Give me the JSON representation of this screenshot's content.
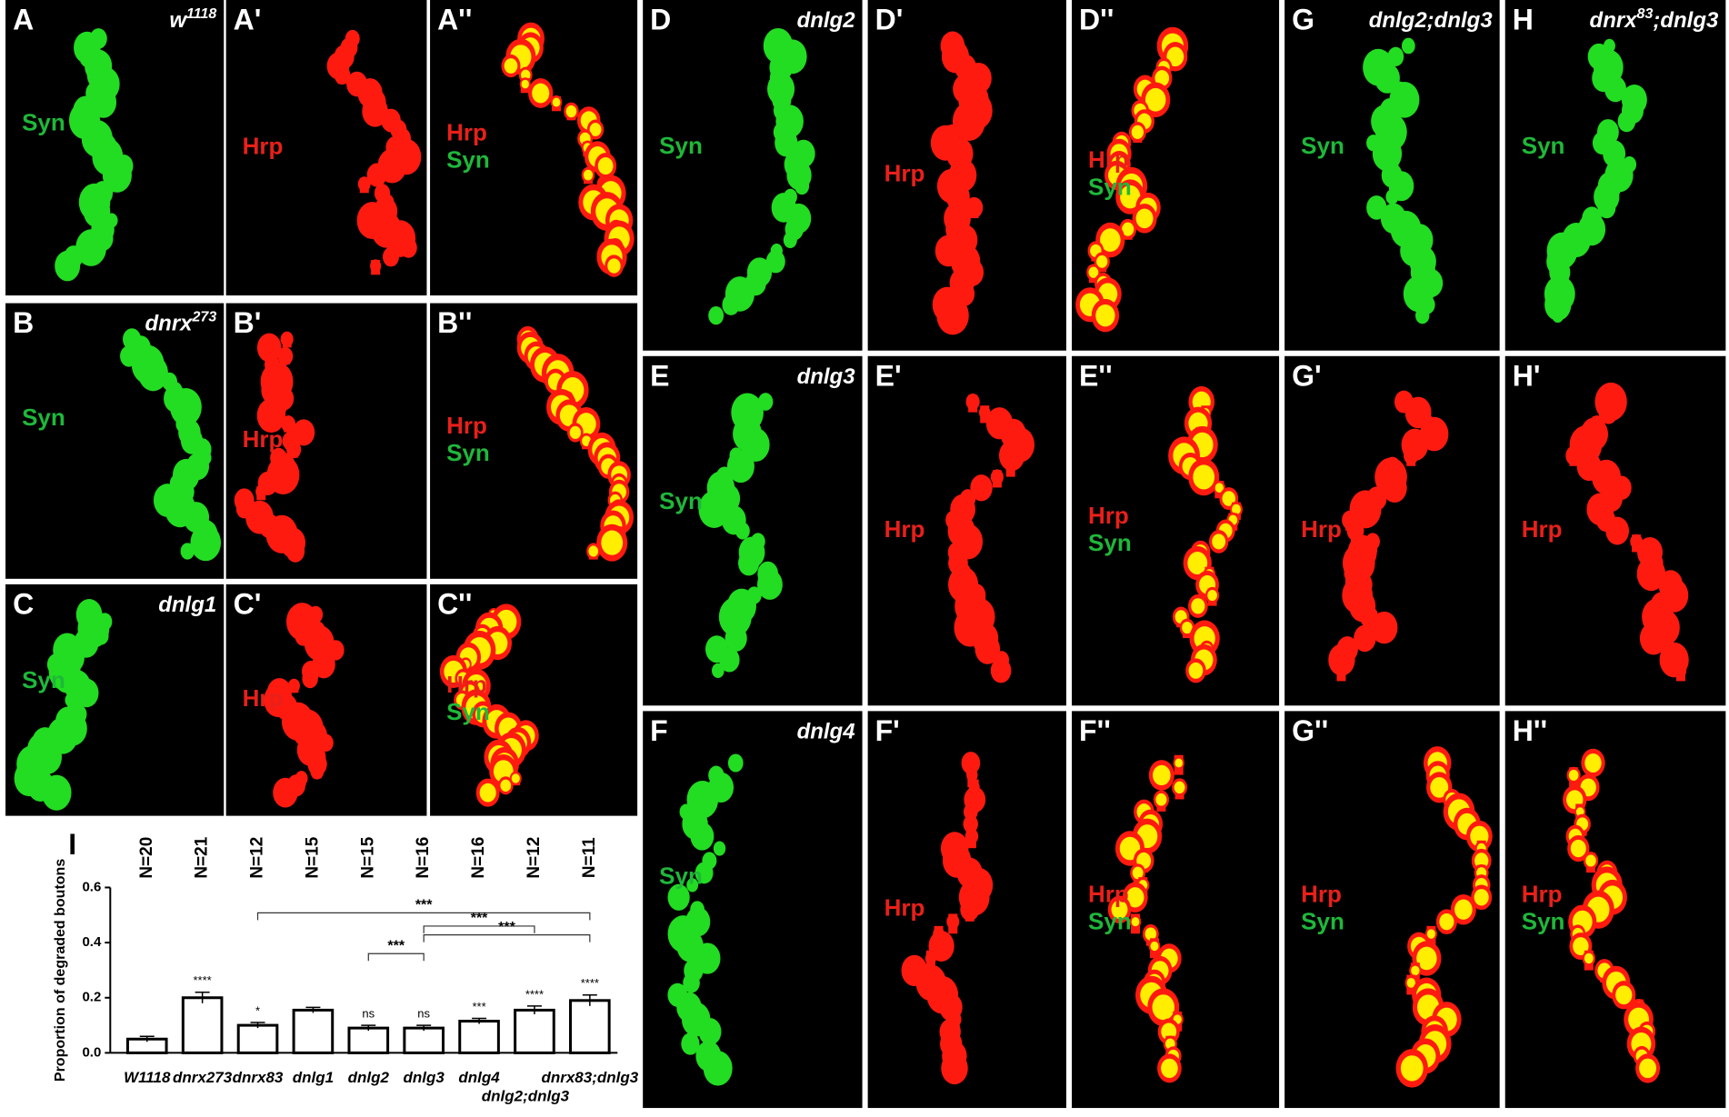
{
  "panels": [
    {
      "label": "A",
      "genotype": {
        "base": "w",
        "sup": "1118"
      },
      "channels": [
        "Syn"
      ]
    },
    {
      "label": "A'",
      "channels": [
        "Hrp"
      ]
    },
    {
      "label": "A''",
      "channels": [
        "Hrp",
        "Syn"
      ]
    },
    {
      "label": "B",
      "genotype": {
        "base": "dnrx",
        "sup": "273"
      },
      "channels": [
        "Syn"
      ]
    },
    {
      "label": "B'",
      "channels": [
        "Hrp"
      ]
    },
    {
      "label": "B''",
      "channels": [
        "Hrp",
        "Syn"
      ]
    },
    {
      "label": "C",
      "genotype": {
        "base": "dnlg1"
      },
      "channels": [
        "Syn"
      ]
    },
    {
      "label": "C'",
      "channels": [
        "Hrp"
      ]
    },
    {
      "label": "C''",
      "channels": [
        "Hrp",
        "Syn"
      ]
    },
    {
      "label": "D",
      "genotype": {
        "base": "dnlg2"
      },
      "channels": [
        "Syn"
      ]
    },
    {
      "label": "D'",
      "channels": [
        "Hrp"
      ]
    },
    {
      "label": "D''",
      "channels": [
        "Hrp",
        "Syn"
      ]
    },
    {
      "label": "E",
      "genotype": {
        "base": "dnlg3"
      },
      "channels": [
        "Syn"
      ]
    },
    {
      "label": "E'",
      "channels": [
        "Hrp"
      ]
    },
    {
      "label": "E''",
      "channels": [
        "Hrp",
        "Syn"
      ]
    },
    {
      "label": "F",
      "genotype": {
        "base": "dnlg4"
      },
      "channels": [
        "Syn"
      ]
    },
    {
      "label": "F'",
      "channels": [
        "Hrp"
      ]
    },
    {
      "label": "F''",
      "channels": [
        "Hrp",
        "Syn"
      ]
    },
    {
      "label": "G",
      "genotype": {
        "base": "dnlg2;dnlg3"
      },
      "channels": [
        "Syn"
      ]
    },
    {
      "label": "G'",
      "channels": [
        "Hrp"
      ]
    },
    {
      "label": "G''",
      "channels": [
        "Hrp",
        "Syn"
      ]
    },
    {
      "label": "H",
      "genotype": {
        "base": "dnrx",
        "sup": "83",
        "post": ";dnlg3"
      },
      "channels": [
        "Syn"
      ]
    },
    {
      "label": "H'",
      "channels": [
        "Hrp"
      ]
    },
    {
      "label": "H''",
      "channels": [
        "Hrp",
        "Syn"
      ]
    }
  ],
  "chart_data": {
    "type": "bar",
    "panel_label": "I",
    "ylabel": "Proportion of degraded boutons",
    "categories": [
      "W1118",
      "dnrx273",
      "dnrx83",
      "dnlg1",
      "dnlg2",
      "dnlg3",
      "dnlg4",
      "dnlg2;dnlg3",
      "dnrx83;dnlg3"
    ],
    "values": [
      0.05,
      0.2,
      0.1,
      0.155,
      0.09,
      0.09,
      0.115,
      0.155,
      0.19
    ],
    "errors": [
      0.01,
      0.02,
      0.01,
      0.01,
      0.01,
      0.01,
      0.01,
      0.015,
      0.02
    ],
    "n_labels": [
      "N=20",
      "N=21",
      "N=12",
      "N=15",
      "N=15",
      "N=16",
      "N=16",
      "N=12",
      "N=11"
    ],
    "significance": [
      null,
      "****",
      "*",
      null,
      "ns",
      "ns",
      "***",
      "****",
      "****"
    ],
    "comparisons": [
      {
        "from": 2,
        "to": 8,
        "label": "***"
      },
      {
        "from": 5,
        "to": 8,
        "label": "***"
      },
      {
        "from": 4,
        "to": 5,
        "label": "***"
      },
      {
        "from": 5,
        "to": 7,
        "label": "***"
      }
    ],
    "color": "#ffffff",
    "ylim": [
      0,
      0.6
    ],
    "yticks": [
      {
        "value": 0,
        "label": "0.0"
      },
      0.2,
      0.4,
      0.6
    ]
  }
}
